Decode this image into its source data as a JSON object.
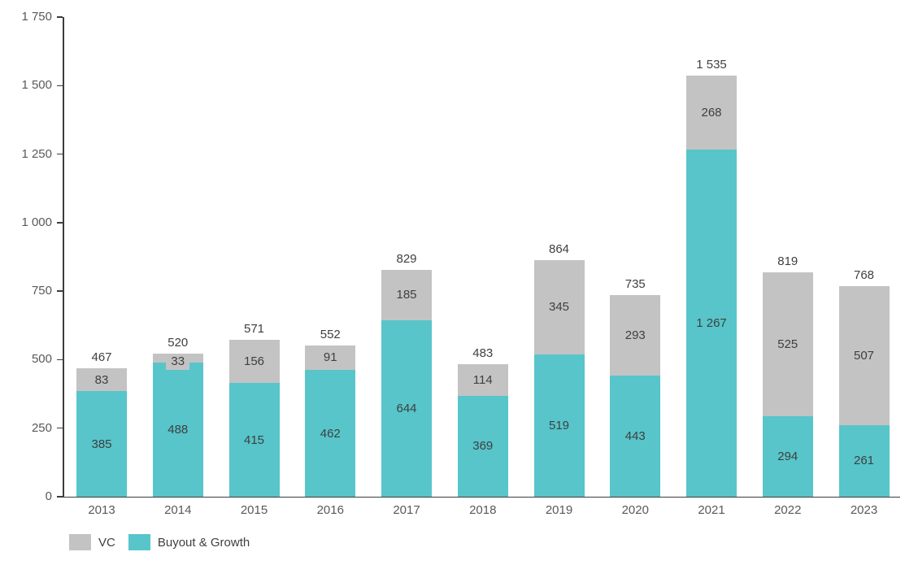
{
  "chart_data": {
    "type": "bar",
    "stacked": true,
    "title": "",
    "grid": false,
    "background": "#FFFFFF",
    "legend_position": "bottom-left",
    "categories": [
      "2013",
      "2014",
      "2015",
      "2016",
      "2017",
      "2018",
      "2019",
      "2020",
      "2021",
      "2022",
      "2023"
    ],
    "series": [
      {
        "name": "Buyout & Growth",
        "color": "#57C5CA",
        "values": [
          385,
          488,
          415,
          462,
          644,
          369,
          519,
          443,
          1267,
          294,
          261
        ],
        "value_labels": [
          "385",
          "488",
          "415",
          "462",
          "644",
          "369",
          "519",
          "443",
          "1 267",
          "294",
          "261"
        ]
      },
      {
        "name": "VC",
        "color": "#C3C3C3",
        "values": [
          83,
          33,
          156,
          91,
          185,
          114,
          345,
          293,
          268,
          525,
          507
        ],
        "value_labels": [
          "83",
          "33",
          "156",
          "91",
          "185",
          "114",
          "345",
          "293",
          "268",
          "525",
          "507"
        ]
      }
    ],
    "totals": [
      467,
      520,
      571,
      552,
      829,
      483,
      864,
      735,
      1535,
      819,
      768
    ],
    "total_labels": [
      "467",
      "520",
      "571",
      "552",
      "829",
      "483",
      "864",
      "735",
      "1 535",
      "819",
      "768"
    ],
    "y_axis": {
      "min": 0,
      "max": 1750,
      "step": 250,
      "tick_labels": [
        "0",
        "250",
        "500",
        "750",
        "1 000",
        "1 250",
        "1 500",
        "1 750"
      ]
    },
    "label_color": "#3F3F3F",
    "axis_color": "#3C3C3C",
    "tick_text_color": "#595959"
  },
  "legend": {
    "items": [
      {
        "label": "VC",
        "color": "#C3C3C3"
      },
      {
        "label": "Buyout & Growth",
        "color": "#57C5CA"
      }
    ]
  }
}
